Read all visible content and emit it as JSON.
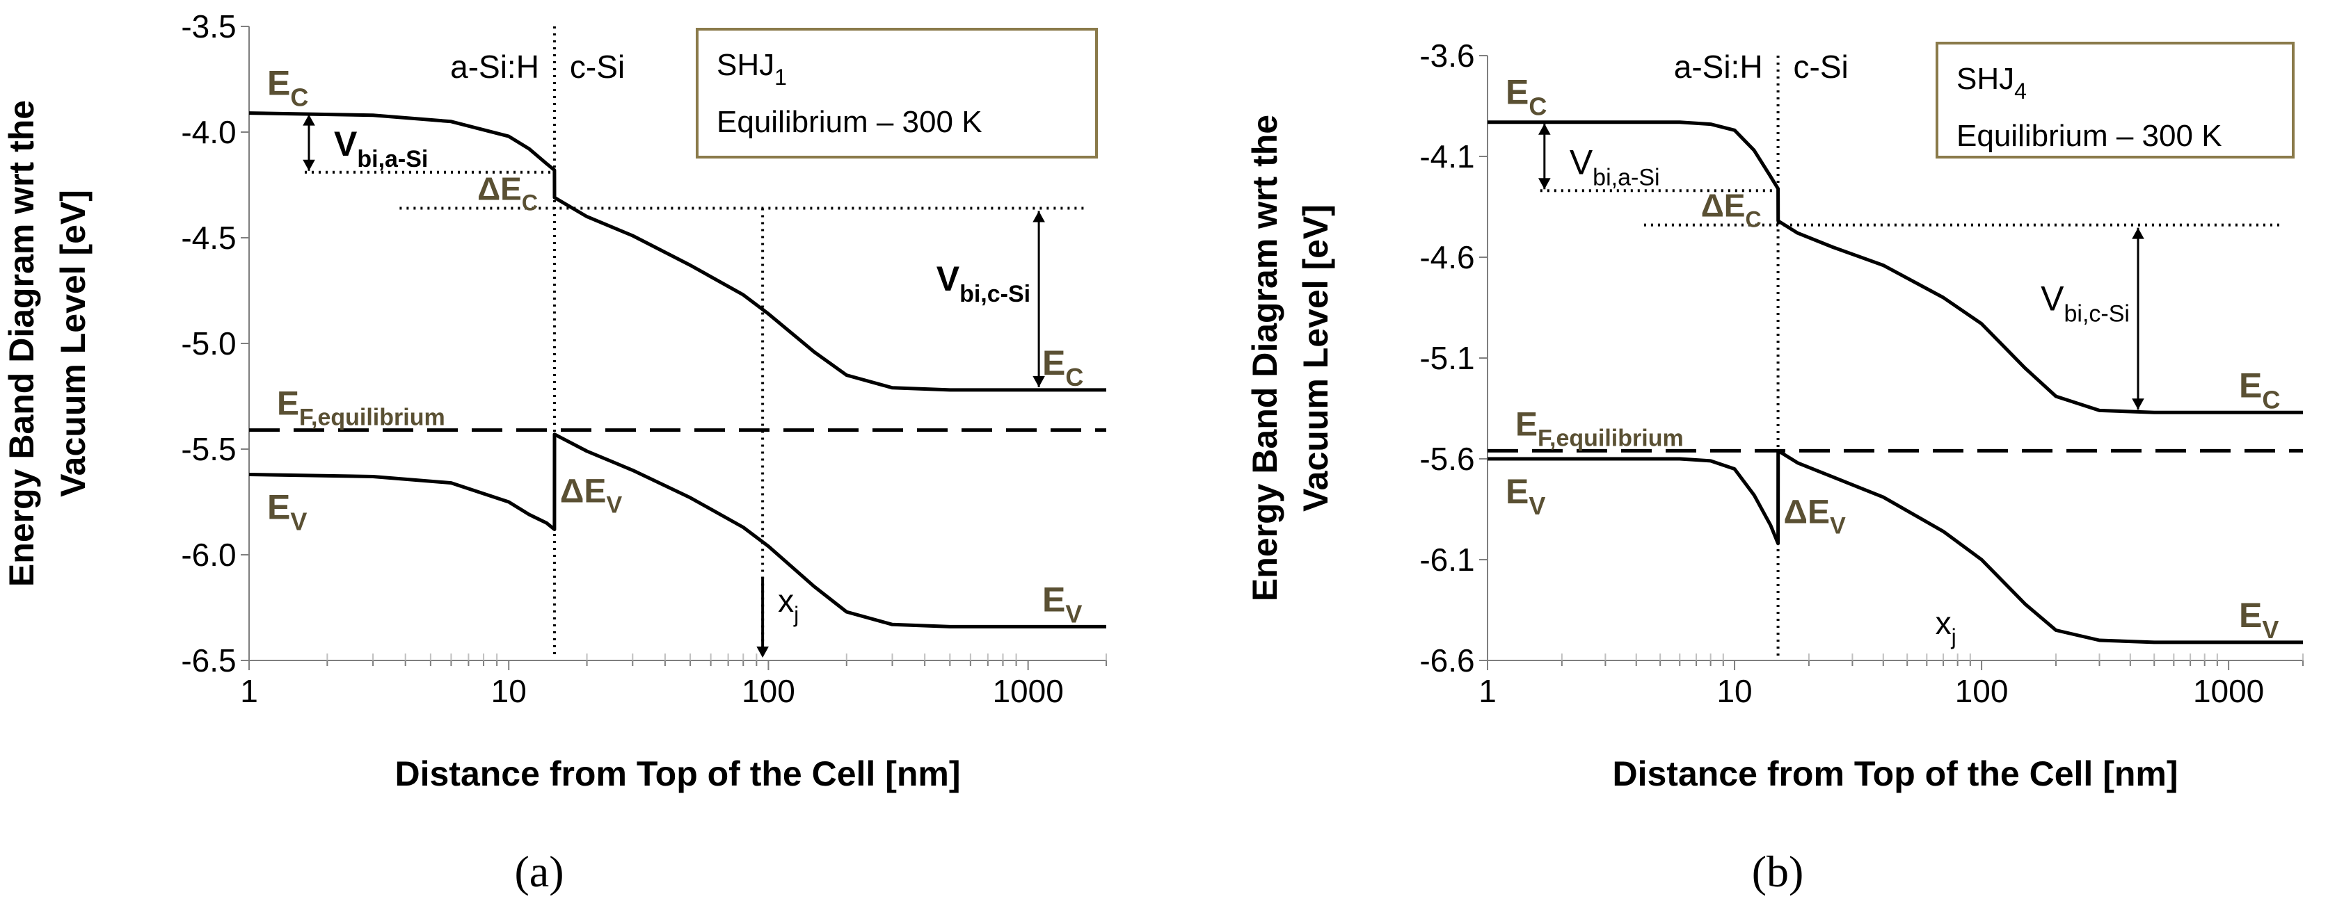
{
  "colors": {
    "label": "#5a5033",
    "box_border": "#8a7a4a",
    "ink": "#000000",
    "grid": "#bfbfbf"
  },
  "chart_data": [
    {
      "type": "line",
      "subfigure_label": "(a)",
      "xlabel": "Distance from Top of the Cell [nm]",
      "ylabel_line1": "Energy Band Diagram wrt the",
      "ylabel_line2": "Vacuum Level [eV]",
      "x_scale": "log",
      "xlim": [
        1,
        2000
      ],
      "ylim": [
        -6.5,
        -3.5
      ],
      "xticks": [
        1,
        10,
        100,
        1000
      ],
      "xtick_labels": [
        "1",
        "10",
        "100",
        "1000"
      ],
      "yticks": [
        -3.5,
        -4.0,
        -4.5,
        -5.0,
        -5.5,
        -6.0,
        -6.5
      ],
      "ytick_labels": [
        "-3.5",
        "-4.0",
        "-4.5",
        "-5.0",
        "-5.5",
        "-6.0",
        "-6.5"
      ],
      "legend_box": {
        "line1_main": "SHJ",
        "line1_sub": "1",
        "line2": "Equilibrium – 300 K"
      },
      "region_labels": [
        "a-Si:H",
        "c-Si"
      ],
      "interface_x": 15,
      "fermi_level": -5.41,
      "series": [
        {
          "name": "Ec",
          "x": [
            1,
            3,
            6,
            10,
            12,
            14,
            15,
            15.01,
            20,
            30,
            50,
            80,
            100,
            150,
            200,
            300,
            500,
            1000,
            2000
          ],
          "values": [
            -3.91,
            -3.92,
            -3.95,
            -4.02,
            -4.08,
            -4.15,
            -4.18,
            -4.31,
            -4.4,
            -4.49,
            -4.63,
            -4.77,
            -4.86,
            -5.04,
            -5.15,
            -5.21,
            -5.22,
            -5.22,
            -5.22
          ]
        },
        {
          "name": "Ev",
          "x": [
            1,
            3,
            6,
            10,
            12,
            14,
            15,
            15.01,
            20,
            30,
            50,
            80,
            100,
            150,
            200,
            300,
            500,
            1000,
            2000
          ],
          "values": [
            -5.62,
            -5.63,
            -5.66,
            -5.75,
            -5.81,
            -5.85,
            -5.88,
            -5.43,
            -5.51,
            -5.6,
            -5.73,
            -5.87,
            -5.96,
            -6.15,
            -6.27,
            -6.33,
            -6.34,
            -6.34,
            -6.34
          ]
        }
      ],
      "annotations": {
        "ec_left": {
          "main": "E",
          "sub": "C"
        },
        "ec_right": {
          "main": "E",
          "sub": "C"
        },
        "ev_left": {
          "main": "E",
          "sub": "V"
        },
        "ev_right": {
          "main": "E",
          "sub": "V"
        },
        "ef": {
          "main": "E",
          "sub": "F,equilibrium"
        },
        "vbi_asi": {
          "main": "V",
          "sub": "bi,a-Si"
        },
        "vbi_csi": {
          "main": "V",
          "sub": "bi,c-Si"
        },
        "delta_ec": {
          "main": "ΔE",
          "sub": "C"
        },
        "delta_ev": {
          "main": "ΔE",
          "sub": "V"
        },
        "xj": {
          "main": "x",
          "sub": "j"
        },
        "xj_position": 95,
        "vbi_asi_level": -4.19,
        "delta_ec_level": -4.36,
        "vbi_csi_x": 1100
      }
    },
    {
      "type": "line",
      "subfigure_label": "(b)",
      "xlabel": "Distance from Top of the Cell [nm]",
      "ylabel_line1": "Energy  Band Diagram wrt the",
      "ylabel_line2": "Vacuum Level [eV]",
      "x_scale": "log",
      "xlim": [
        1,
        2000
      ],
      "ylim": [
        -6.6,
        -3.6
      ],
      "xticks": [
        1,
        10,
        100,
        1000
      ],
      "xtick_labels": [
        "1",
        "10",
        "100",
        "1000"
      ],
      "yticks": [
        -3.6,
        -4.1,
        -4.6,
        -5.1,
        -5.6,
        -6.1,
        -6.6
      ],
      "ytick_labels": [
        "-3.6",
        "-4.1",
        "-4.6",
        "-5.1",
        "-5.6",
        "-6.1",
        "-6.6"
      ],
      "legend_box": {
        "line1_main": "SHJ",
        "line1_sub": "4",
        "line2": "Equilibrium – 300 K"
      },
      "region_labels": [
        "a-Si:H",
        "c-Si"
      ],
      "interface_x": 15,
      "fermi_level": -5.56,
      "series": [
        {
          "name": "Ec",
          "x": [
            1,
            3,
            6,
            8,
            10,
            12,
            14,
            15,
            15.01,
            18,
            25,
            40,
            70,
            100,
            150,
            200,
            300,
            500,
            1000,
            2000
          ],
          "values": [
            -3.93,
            -3.93,
            -3.93,
            -3.94,
            -3.97,
            -4.07,
            -4.2,
            -4.26,
            -4.42,
            -4.48,
            -4.55,
            -4.64,
            -4.8,
            -4.93,
            -5.15,
            -5.29,
            -5.36,
            -5.37,
            -5.37,
            -5.37
          ]
        },
        {
          "name": "Ev",
          "x": [
            1,
            3,
            6,
            8,
            10,
            12,
            14,
            15,
            15.01,
            18,
            25,
            40,
            70,
            100,
            150,
            200,
            300,
            500,
            1000,
            2000
          ],
          "values": [
            -5.6,
            -5.6,
            -5.6,
            -5.61,
            -5.65,
            -5.78,
            -5.93,
            -6.02,
            -5.56,
            -5.62,
            -5.69,
            -5.79,
            -5.96,
            -6.1,
            -6.32,
            -6.45,
            -6.5,
            -6.51,
            -6.51,
            -6.51
          ]
        }
      ],
      "annotations": {
        "ec_left": {
          "main": "E",
          "sub": "C"
        },
        "ec_right": {
          "main": "E",
          "sub": "C"
        },
        "ev_left": {
          "main": "E",
          "sub": "V"
        },
        "ev_right": {
          "main": "E",
          "sub": "V"
        },
        "ef": {
          "main": "E",
          "sub": "F,equilibrium"
        },
        "vbi_asi": {
          "main": "V",
          "sub": "bi,a-Si"
        },
        "vbi_csi": {
          "main": "V",
          "sub": "bi,c-Si"
        },
        "delta_ec": {
          "main": "ΔE",
          "sub": "C"
        },
        "delta_ev": {
          "main": "ΔE",
          "sub": "V"
        },
        "xj": {
          "main": "x",
          "sub": "j"
        },
        "xj_position": 65,
        "vbi_asi_level": -4.27,
        "delta_ec_level": -4.44,
        "vbi_csi_x": 430
      }
    }
  ]
}
